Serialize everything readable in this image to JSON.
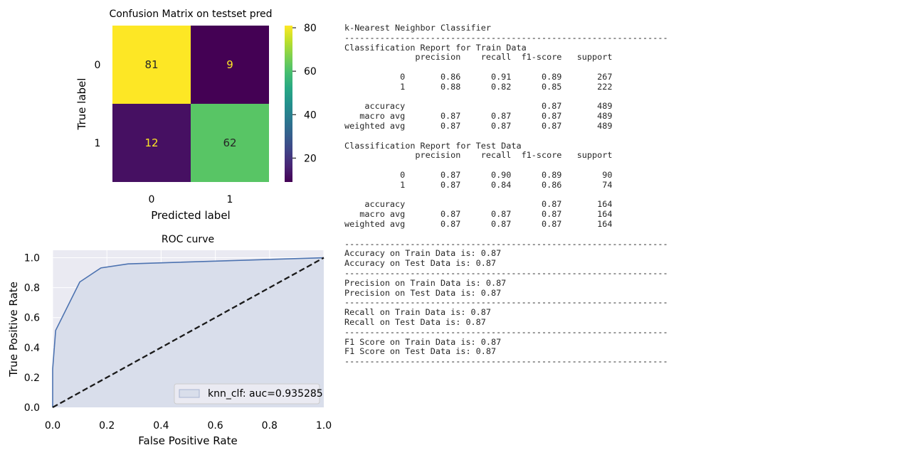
{
  "chart_data": [
    {
      "type": "heatmap",
      "title": "Confusion Matrix on testset pred",
      "xlabel": "Predicted label",
      "ylabel": "True label",
      "x_ticklabels": [
        "0",
        "1"
      ],
      "y_ticklabels": [
        "0",
        "1"
      ],
      "matrix": [
        [
          81,
          9
        ],
        [
          12,
          62
        ]
      ],
      "colormap": "viridis",
      "colorbar_ticks": [
        "20",
        "40",
        "60",
        "80"
      ],
      "colorbar_range": [
        9,
        81
      ]
    },
    {
      "type": "line",
      "title": "ROC curve",
      "xlabel": "False Positive Rate",
      "ylabel": "True Positive Rate",
      "xlim": [
        0,
        1
      ],
      "ylim": [
        0,
        1.05
      ],
      "x_ticks": [
        "0.0",
        "0.2",
        "0.4",
        "0.6",
        "0.8",
        "1.0"
      ],
      "y_ticks": [
        "0.0",
        "0.2",
        "0.4",
        "0.6",
        "0.8",
        "1.0"
      ],
      "grid": true,
      "legend_position": "lower-right",
      "series": [
        {
          "name": "knn_clf: auc=0.935285",
          "x": [
            0,
            0,
            0.011,
            0.1,
            0.178,
            0.278,
            1.0
          ],
          "y": [
            0,
            0.257,
            0.514,
            0.838,
            0.932,
            0.959,
            1.0
          ],
          "color": "#4c72b0",
          "fill": "#d9deeb"
        },
        {
          "name": "",
          "x": [
            0,
            1
          ],
          "y": [
            0,
            1
          ],
          "color": "#1a1a1a",
          "dashed": true
        }
      ]
    }
  ],
  "report": {
    "title": "k-Nearest Neighbor Classifier",
    "separator": "----------------------------------------------------------------",
    "train_header": "Classification Report for Train Data",
    "columns": "              precision    recall  f1-score   support",
    "train_row0": "           0       0.86      0.91      0.89       267",
    "train_row1": "           1       0.88      0.82      0.85       222",
    "train_accuracy": "    accuracy                           0.87       489",
    "train_macro": "   macro avg       0.87      0.87      0.87       489",
    "train_weighted": "weighted avg       0.87      0.87      0.87       489",
    "test_header": "Classification Report for Test Data",
    "test_row0": "           0       0.87      0.90      0.89        90",
    "test_row1": "           1       0.87      0.84      0.86        74",
    "test_accuracy": "    accuracy                           0.87       164",
    "test_macro": "   macro avg       0.87      0.87      0.87       164",
    "test_weighted": "weighted avg       0.87      0.87      0.87       164",
    "acc_train": "Accuracy on Train Data is: 0.87",
    "acc_test": "Accuracy on Test Data is: 0.87",
    "prec_train": "Precision on Train Data is: 0.87",
    "prec_test": "Precision on Test Data is: 0.87",
    "rec_train": "Recall on Train Data is: 0.87",
    "rec_test": "Recall on Test Data is: 0.87",
    "f1_train": "F1 Score on Train Data is: 0.87",
    "f1_test": "F1 Score on Test Data is: 0.87"
  }
}
